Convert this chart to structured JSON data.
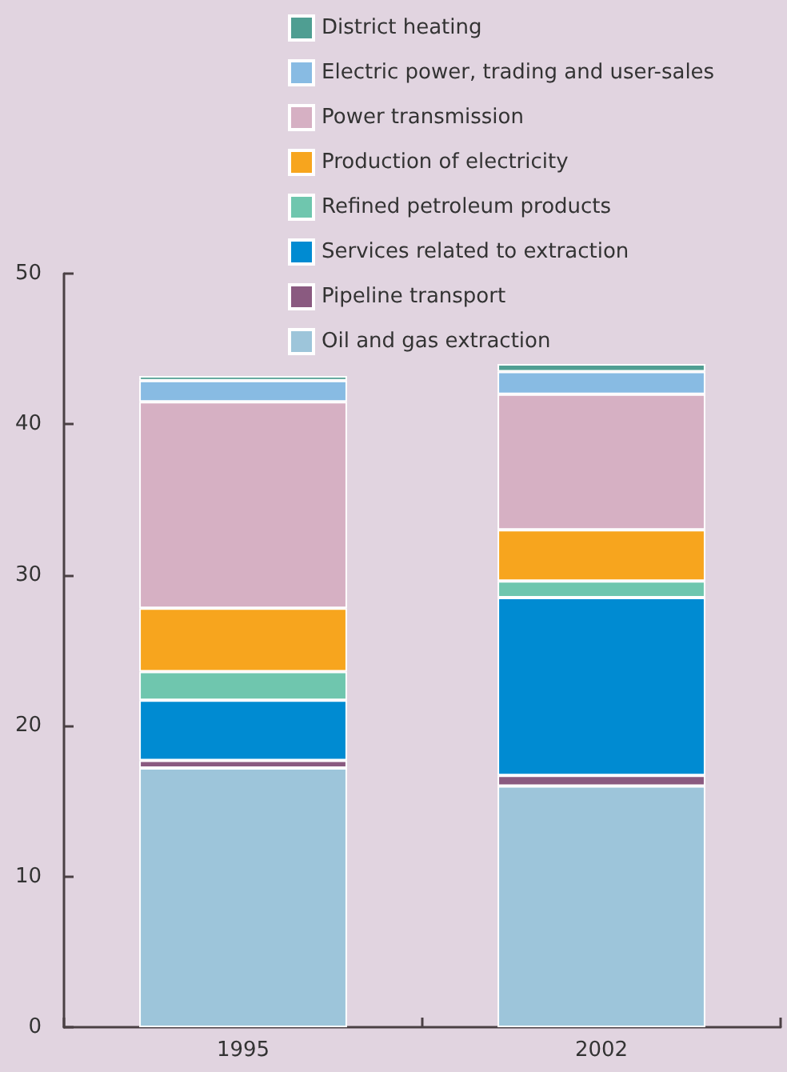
{
  "chart_data": {
    "type": "bar",
    "stacked": true,
    "categories": [
      "1995",
      "2002"
    ],
    "series": [
      {
        "name": "Oil and gas extraction",
        "color": "#9dc5da",
        "values": [
          17.2,
          16.0
        ]
      },
      {
        "name": "Pipeline transport",
        "color": "#8a5a80",
        "values": [
          0.5,
          0.7
        ]
      },
      {
        "name": "Services related to extraction",
        "color": "#008bd2",
        "values": [
          4.0,
          11.8
        ]
      },
      {
        "name": "Refined petroleum products",
        "color": "#6fc6ae",
        "values": [
          1.9,
          1.1
        ]
      },
      {
        "name": "Production of electricity",
        "color": "#f7a51e",
        "values": [
          4.2,
          3.4
        ]
      },
      {
        "name": "Power transmission",
        "color": "#d6b0c3",
        "values": [
          13.7,
          9.0
        ]
      },
      {
        "name": "Electric power, trading and user-sales",
        "color": "#88bbe3",
        "values": [
          1.4,
          1.5
        ]
      },
      {
        "name": "District heating",
        "color": "#4f9e92",
        "values": [
          0.3,
          0.5
        ]
      }
    ],
    "ylim": [
      0,
      50
    ],
    "yticks": [
      0,
      10,
      20,
      30,
      40,
      50
    ],
    "grid": false,
    "legend": "top"
  }
}
